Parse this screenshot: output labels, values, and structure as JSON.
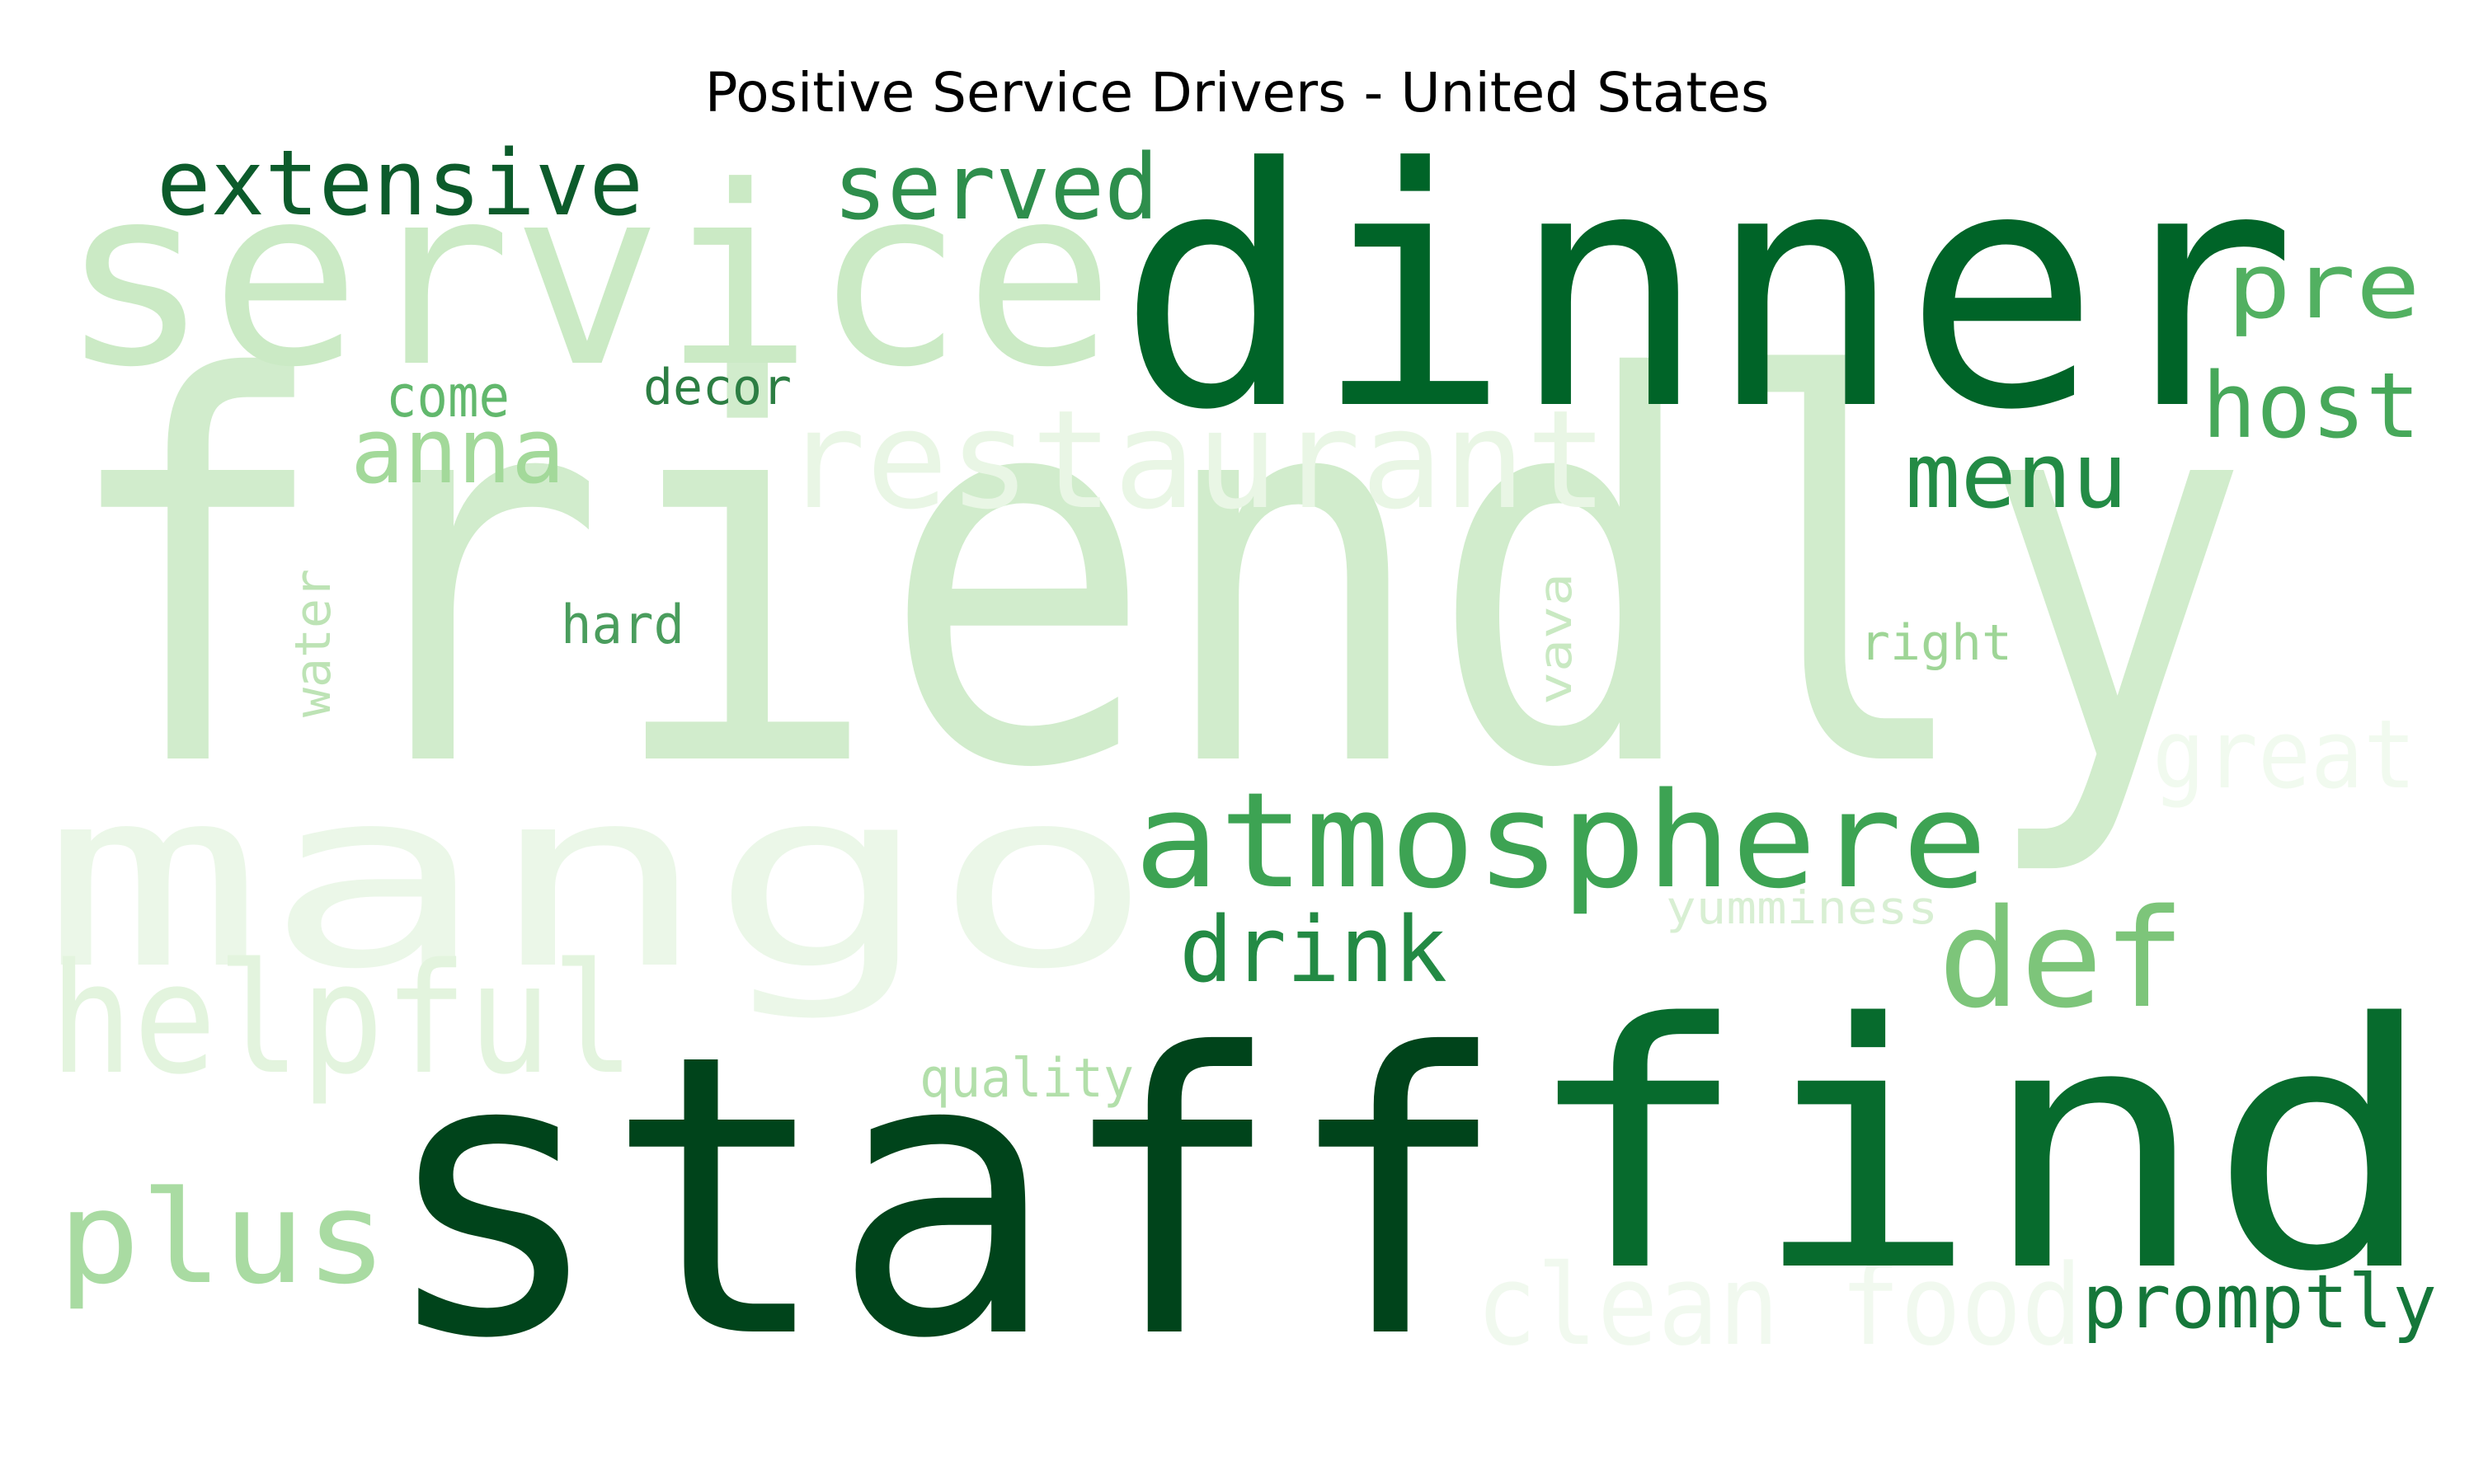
{
  "title": "Positive Service Drivers - United States",
  "words": [
    {
      "text": "friendly",
      "color": "#d1eccc",
      "vertical": false
    },
    {
      "text": "mango",
      "color": "#ebf7e8",
      "vertical": false
    },
    {
      "text": "service",
      "color": "#cbeac5",
      "vertical": false
    },
    {
      "text": "restaurant",
      "color": "#e9f6e5",
      "vertical": false
    },
    {
      "text": "clean food",
      "color": "#f1f9ef",
      "vertical": false
    },
    {
      "text": "great",
      "color": "#f1faef",
      "vertical": false
    },
    {
      "text": "helpful",
      "color": "#e3f4de",
      "vertical": false
    },
    {
      "text": "staff",
      "color": "#00441b",
      "vertical": false
    },
    {
      "text": "dinner",
      "color": "#006428",
      "vertical": false
    },
    {
      "text": "find",
      "color": "#076b2d",
      "vertical": false
    },
    {
      "text": "extensive",
      "color": "#0c5b2b",
      "vertical": false
    },
    {
      "text": "served",
      "color": "#2e8e4c",
      "vertical": false
    },
    {
      "text": "pre",
      "color": "#52b061",
      "vertical": false
    },
    {
      "text": "host",
      "color": "#47a85a",
      "vertical": false
    },
    {
      "text": "menu",
      "color": "#238b45",
      "vertical": false
    },
    {
      "text": "anna",
      "color": "#a3d99a",
      "vertical": false
    },
    {
      "text": "come",
      "color": "#62b86d",
      "vertical": false
    },
    {
      "text": "decor",
      "color": "#2c7e43",
      "vertical": false
    },
    {
      "text": "atmosphere",
      "color": "#3da353",
      "vertical": false
    },
    {
      "text": "drink",
      "color": "#238a44",
      "vertical": false
    },
    {
      "text": "def",
      "color": "#7dc57a",
      "vertical": false
    },
    {
      "text": "plus",
      "color": "#a9dba2",
      "vertical": false
    },
    {
      "text": "promptly",
      "color": "#15773a",
      "vertical": false
    },
    {
      "text": "quality",
      "color": "#b2dfaa",
      "vertical": false
    },
    {
      "text": "yumminess",
      "color": "#d8efd3",
      "vertical": false
    },
    {
      "text": "hard",
      "color": "#4a9d5d",
      "vertical": false
    },
    {
      "text": "right",
      "color": "#9ed596",
      "vertical": false
    },
    {
      "text": "water",
      "color": "#bde3b5",
      "vertical": true
    },
    {
      "text": "vava",
      "color": "#c9e9c2",
      "vertical": true
    }
  ]
}
